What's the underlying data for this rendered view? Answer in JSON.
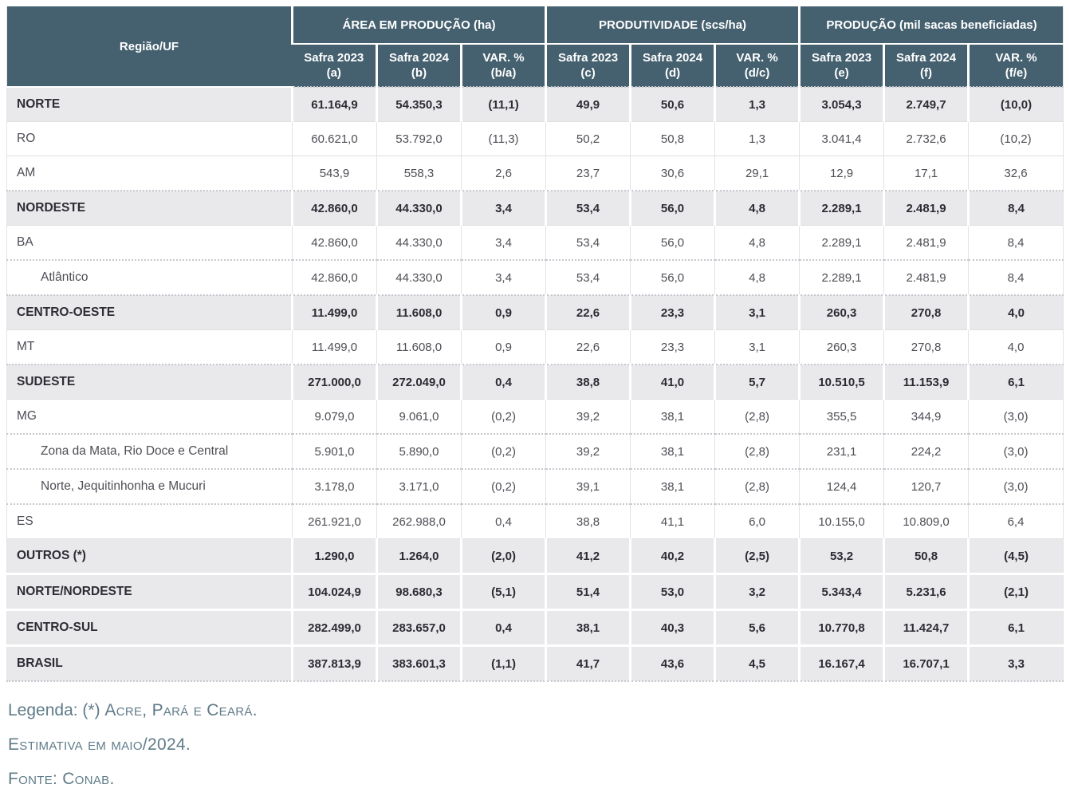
{
  "colors": {
    "header_bg": "#45606f",
    "header_text": "#ffffff",
    "region_row_bg": "#e9e9ec",
    "region_text": "#2c2c34",
    "row_text": "#4e4e56",
    "footer_text": "#5f7b88",
    "dotted_divider": "#c6c9ce"
  },
  "table": {
    "corner_label": "Região/UF",
    "groups": [
      {
        "label": "ÁREA EM PRODUÇÃO (ha)",
        "columns": [
          {
            "line1": "Safra 2023",
            "line2": "(a)"
          },
          {
            "line1": "Safra 2024",
            "line2": "(b)"
          },
          {
            "line1": "VAR. %",
            "line2": "(b/a)"
          }
        ]
      },
      {
        "label": "PRODUTIVIDADE (scs/ha)",
        "columns": [
          {
            "line1": "Safra 2023",
            "line2": "(c)"
          },
          {
            "line1": "Safra 2024",
            "line2": "(d)"
          },
          {
            "line1": "VAR. %",
            "line2": "(d/c)"
          }
        ]
      },
      {
        "label": "PRODUÇÃO (mil sacas beneficiadas)",
        "columns": [
          {
            "line1": "Safra 2023",
            "line2": "(e)"
          },
          {
            "line1": "Safra 2024",
            "line2": "(f)"
          },
          {
            "line1": "VAR. %",
            "line2": "(f/e)"
          }
        ]
      }
    ],
    "row_meta": [
      {
        "style": "region",
        "divider": "dotted"
      },
      {
        "style": "uf",
        "divider": "solid"
      },
      {
        "style": "uf",
        "divider": "solid"
      },
      {
        "style": "region",
        "divider": "dotted"
      },
      {
        "style": "uf",
        "divider": "solid"
      },
      {
        "style": "sub",
        "divider": "dotted"
      },
      {
        "style": "region",
        "divider": "dotted"
      },
      {
        "style": "uf",
        "divider": "solid"
      },
      {
        "style": "region",
        "divider": "dotted"
      },
      {
        "style": "uf",
        "divider": "solid"
      },
      {
        "style": "sub",
        "divider": "dotted"
      },
      {
        "style": "sub",
        "divider": "dotted"
      },
      {
        "style": "uf",
        "divider": "dotted"
      },
      {
        "style": "region",
        "divider": "solid"
      },
      {
        "style": "region",
        "divider": "gap"
      },
      {
        "style": "region",
        "divider": "gap"
      },
      {
        "style": "region",
        "divider": "gap"
      }
    ]
  },
  "chart_data": {
    "type": "table",
    "title": "",
    "column_groups": [
      "ÁREA EM PRODUÇÃO (ha)",
      "PRODUTIVIDADE (scs/ha)",
      "PRODUÇÃO (mil sacas beneficiadas)"
    ],
    "columns": [
      "Região/UF",
      "Safra 2023 (a)",
      "Safra 2024 (b)",
      "VAR. % (b/a)",
      "Safra 2023 (c)",
      "Safra 2024 (d)",
      "VAR. % (d/c)",
      "Safra 2023 (e)",
      "Safra 2024 (f)",
      "VAR. % (f/e)"
    ],
    "rows": [
      {
        "label": "NORTE",
        "values": [
          "61.164,9",
          "54.350,3",
          "(11,1)",
          "49,9",
          "50,6",
          "1,3",
          "3.054,3",
          "2.749,7",
          "(10,0)"
        ]
      },
      {
        "label": "RO",
        "values": [
          "60.621,0",
          "53.792,0",
          "(11,3)",
          "50,2",
          "50,8",
          "1,3",
          "3.041,4",
          "2.732,6",
          "(10,2)"
        ]
      },
      {
        "label": "AM",
        "values": [
          "543,9",
          "558,3",
          "2,6",
          "23,7",
          "30,6",
          "29,1",
          "12,9",
          "17,1",
          "32,6"
        ]
      },
      {
        "label": "NORDESTE",
        "values": [
          "42.860,0",
          "44.330,0",
          "3,4",
          "53,4",
          "56,0",
          "4,8",
          "2.289,1",
          "2.481,9",
          "8,4"
        ]
      },
      {
        "label": "BA",
        "values": [
          "42.860,0",
          "44.330,0",
          "3,4",
          "53,4",
          "56,0",
          "4,8",
          "2.289,1",
          "2.481,9",
          "8,4"
        ]
      },
      {
        "label": "Atlântico",
        "values": [
          "42.860,0",
          "44.330,0",
          "3,4",
          "53,4",
          "56,0",
          "4,8",
          "2.289,1",
          "2.481,9",
          "8,4"
        ]
      },
      {
        "label": "CENTRO-OESTE",
        "values": [
          "11.499,0",
          "11.608,0",
          "0,9",
          "22,6",
          "23,3",
          "3,1",
          "260,3",
          "270,8",
          "4,0"
        ]
      },
      {
        "label": "MT",
        "values": [
          "11.499,0",
          "11.608,0",
          "0,9",
          "22,6",
          "23,3",
          "3,1",
          "260,3",
          "270,8",
          "4,0"
        ]
      },
      {
        "label": "SUDESTE",
        "values": [
          "271.000,0",
          "272.049,0",
          "0,4",
          "38,8",
          "41,0",
          "5,7",
          "10.510,5",
          "11.153,9",
          "6,1"
        ]
      },
      {
        "label": "MG",
        "values": [
          "9.079,0",
          "9.061,0",
          "(0,2)",
          "39,2",
          "38,1",
          "(2,8)",
          "355,5",
          "344,9",
          "(3,0)"
        ]
      },
      {
        "label": "Zona da Mata, Rio Doce e Central",
        "values": [
          "5.901,0",
          "5.890,0",
          "(0,2)",
          "39,2",
          "38,1",
          "(2,8)",
          "231,1",
          "224,2",
          "(3,0)"
        ]
      },
      {
        "label": "Norte, Jequitinhonha e Mucuri",
        "values": [
          "3.178,0",
          "3.171,0",
          "(0,2)",
          "39,1",
          "38,1",
          "(2,8)",
          "124,4",
          "120,7",
          "(3,0)"
        ]
      },
      {
        "label": "ES",
        "values": [
          "261.921,0",
          "262.988,0",
          "0,4",
          "38,8",
          "41,1",
          "6,0",
          "10.155,0",
          "10.809,0",
          "6,4"
        ]
      },
      {
        "label": "OUTROS (*)",
        "values": [
          "1.290,0",
          "1.264,0",
          "(2,0)",
          "41,2",
          "40,2",
          "(2,5)",
          "53,2",
          "50,8",
          "(4,5)"
        ]
      },
      {
        "label": "NORTE/NORDESTE",
        "values": [
          "104.024,9",
          "98.680,3",
          "(5,1)",
          "51,4",
          "53,0",
          "3,2",
          "5.343,4",
          "5.231,6",
          "(2,1)"
        ]
      },
      {
        "label": "CENTRO-SUL",
        "values": [
          "282.499,0",
          "283.657,0",
          "0,4",
          "38,1",
          "40,3",
          "5,6",
          "10.770,8",
          "11.424,7",
          "6,1"
        ]
      },
      {
        "label": "BRASIL",
        "values": [
          "387.813,9",
          "383.601,3",
          "(1,1)",
          "41,7",
          "43,6",
          "4,5",
          "16.167,4",
          "16.707,1",
          "3,3"
        ]
      }
    ]
  },
  "footer": {
    "lines": [
      {
        "prefix": "Legenda: (*) ",
        "smallcaps": "Acre, Pará e Ceará."
      },
      {
        "prefix": "",
        "smallcaps": "Estimativa em maio/2024."
      },
      {
        "prefix": "",
        "smallcaps": "Fonte: Conab."
      }
    ]
  }
}
